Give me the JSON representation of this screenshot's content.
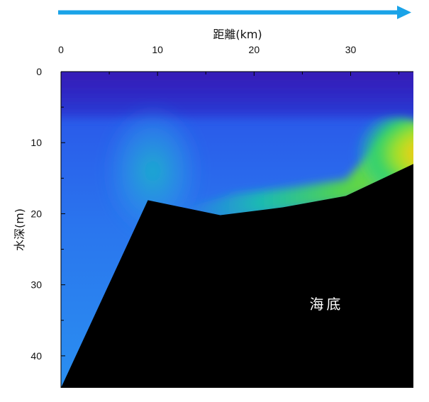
{
  "chart_data": {
    "type": "heatmap",
    "xlabel": "距離(km)",
    "ylabel": "水深(m)",
    "xlim": [
      0,
      36.5
    ],
    "ylim": [
      0,
      44.5
    ],
    "y_inverted": true,
    "x_axis_position": "top",
    "x_ticks": [
      0,
      10,
      20,
      30
    ],
    "x_tick_labels": [
      "0",
      "10",
      "20",
      "30"
    ],
    "x_minor_step": 5,
    "y_ticks": [
      0,
      10,
      20,
      30,
      40
    ],
    "y_tick_labels": [
      "0",
      "10",
      "20",
      "30",
      "40"
    ],
    "y_minor_step": 5,
    "colormap": [
      "#2a0a9e",
      "#1f4ff0",
      "#2a8ff0",
      "#17c7b8",
      "#3fd84a",
      "#c8e418",
      "#f5b20f"
    ],
    "seabed_profile": {
      "x": [
        0,
        9,
        16.5,
        23,
        29.5,
        36.5
      ],
      "depth": [
        44.5,
        18.1,
        20.2,
        19.1,
        17.5,
        13
      ]
    },
    "seabed_label": "海底",
    "direction_arrow_color": "#1aa3e8",
    "seabed_color": "#000000"
  }
}
